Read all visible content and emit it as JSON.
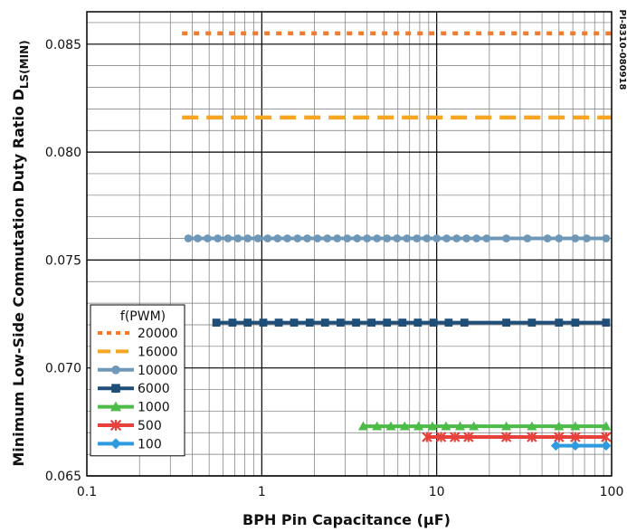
{
  "chart_data": {
    "type": "line",
    "x_scale": "log",
    "xlim": [
      0.1,
      100
    ],
    "ylim": [
      0.065,
      0.0865
    ],
    "xlabel": "BPH Pin Capacitance (μF)",
    "ylabel_main": "Minimum Low-Side Commutation Duty Ratio D",
    "ylabel_sub": "LS(MIN)",
    "x_ticks": [
      0.1,
      1,
      10,
      100
    ],
    "x_tick_labels": [
      "0.1",
      "1",
      "10",
      "100"
    ],
    "y_ticks": [
      0.065,
      0.07,
      0.075,
      0.08,
      0.085
    ],
    "y_tick_labels": [
      "0.065",
      "0.070",
      "0.075",
      "0.080",
      "0.085"
    ],
    "grid": true,
    "legend_title": "f(PWM)",
    "legend_position": "bottom-left",
    "side_code": "PI-8310-080918",
    "series": [
      {
        "name": "20000",
        "color": "#ee7d31",
        "style": "dotted",
        "marker": "none",
        "x": [
          0.35,
          100
        ],
        "y": [
          0.0855,
          0.0855
        ]
      },
      {
        "name": "16000",
        "color": "#f6a623",
        "style": "dashed",
        "marker": "none",
        "x": [
          0.35,
          100
        ],
        "y": [
          0.0816,
          0.0816
        ]
      },
      {
        "name": "10000",
        "color": "#6f98b8",
        "style": "solid",
        "marker": "circle",
        "x": [
          0.38,
          0.43,
          0.49,
          0.56,
          0.64,
          0.73,
          0.83,
          0.95,
          1.08,
          1.23,
          1.4,
          1.6,
          1.82,
          2.08,
          2.37,
          2.7,
          3.08,
          3.51,
          4.0,
          4.56,
          5.2,
          5.93,
          6.76,
          7.7,
          8.78,
          10.0,
          11.4,
          13.0,
          14.8,
          16.9,
          19.3,
          25.0,
          33.0,
          43.0,
          50.0,
          62.0,
          72.0,
          93.0
        ],
        "y": [
          0.076,
          0.076,
          0.076,
          0.076,
          0.076,
          0.076,
          0.076,
          0.076,
          0.076,
          0.076,
          0.076,
          0.076,
          0.076,
          0.076,
          0.076,
          0.076,
          0.076,
          0.076,
          0.076,
          0.076,
          0.076,
          0.076,
          0.076,
          0.076,
          0.076,
          0.076,
          0.076,
          0.076,
          0.076,
          0.076,
          0.076,
          0.076,
          0.076,
          0.076,
          0.076,
          0.076,
          0.076,
          0.076
        ]
      },
      {
        "name": "6000",
        "color": "#1f4e79",
        "style": "solid",
        "marker": "square",
        "x": [
          0.55,
          0.68,
          0.83,
          1.02,
          1.25,
          1.53,
          1.88,
          2.3,
          2.82,
          3.46,
          4.24,
          5.2,
          6.37,
          7.8,
          9.6,
          11.7,
          14.4,
          25.0,
          35.0,
          50.0,
          62.0,
          93.0
        ],
        "y": [
          0.0721,
          0.0721,
          0.0721,
          0.0721,
          0.0721,
          0.0721,
          0.0721,
          0.0721,
          0.0721,
          0.0721,
          0.0721,
          0.0721,
          0.0721,
          0.0721,
          0.0721,
          0.0721,
          0.0721,
          0.0721,
          0.0721,
          0.0721,
          0.0721,
          0.0721
        ]
      },
      {
        "name": "1000",
        "color": "#4cbb47",
        "style": "solid",
        "marker": "triangle",
        "x": [
          3.8,
          4.56,
          5.47,
          6.56,
          7.87,
          9.45,
          11.3,
          13.6,
          16.3,
          25.0,
          35.0,
          50.0,
          62.0,
          93.0
        ],
        "y": [
          0.0673,
          0.0673,
          0.0673,
          0.0673,
          0.0673,
          0.0673,
          0.0673,
          0.0673,
          0.0673,
          0.0673,
          0.0673,
          0.0673,
          0.0673,
          0.0673
        ]
      },
      {
        "name": "500",
        "color": "#e8413b",
        "style": "solid",
        "marker": "star",
        "x": [
          8.8,
          10.6,
          12.7,
          15.2,
          25.0,
          35.0,
          50.0,
          62.0,
          93.0
        ],
        "y": [
          0.0668,
          0.0668,
          0.0668,
          0.0668,
          0.0668,
          0.0668,
          0.0668,
          0.0668,
          0.0668
        ]
      },
      {
        "name": "100",
        "color": "#2e9ae0",
        "style": "solid",
        "marker": "diamond",
        "x": [
          48.0,
          62.0,
          93.0
        ],
        "y": [
          0.0664,
          0.0664,
          0.0664
        ]
      }
    ]
  }
}
